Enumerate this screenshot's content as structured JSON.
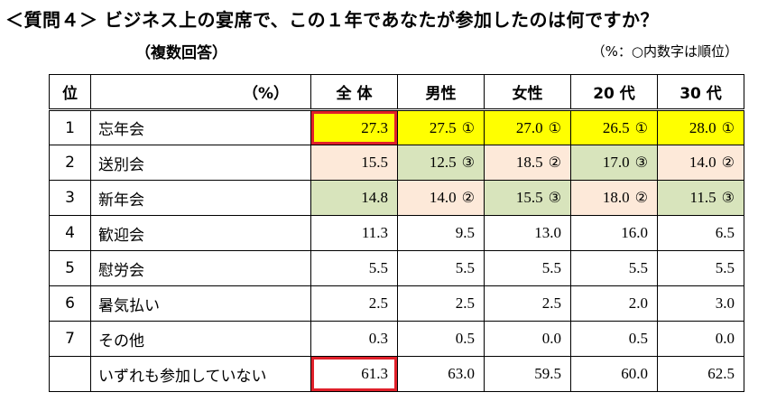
{
  "title": "＜質問４＞ ビジネス上の宴席で、この１年であなたが参加したのは何ですか？",
  "subtitle": "（複数回答）",
  "note": "（%：○内数字は順位）",
  "table": {
    "headers": [
      "位",
      "（%）",
      "全 体",
      "男性",
      "女性",
      "20 代",
      "30 代"
    ],
    "rows": [
      {
        "rank": "1",
        "label": "忘年会",
        "cells": [
          {
            "v": "27.3",
            "r": "",
            "bg": "#ffff00",
            "hl": true
          },
          {
            "v": "27.5",
            "r": "①",
            "bg": "#ffff00"
          },
          {
            "v": "27.0",
            "r": "①",
            "bg": "#ffff00"
          },
          {
            "v": "26.5",
            "r": "①",
            "bg": "#ffff00"
          },
          {
            "v": "28.0",
            "r": "①",
            "bg": "#ffff00"
          }
        ]
      },
      {
        "rank": "2",
        "label": "送別会",
        "cells": [
          {
            "v": "15.5",
            "r": "",
            "bg": "#fde9d9"
          },
          {
            "v": "12.5",
            "r": "③",
            "bg": "#d8e4bc"
          },
          {
            "v": "18.5",
            "r": "②",
            "bg": "#fde9d9"
          },
          {
            "v": "17.0",
            "r": "③",
            "bg": "#d8e4bc"
          },
          {
            "v": "14.0",
            "r": "②",
            "bg": "#fde9d9"
          }
        ]
      },
      {
        "rank": "3",
        "label": "新年会",
        "cells": [
          {
            "v": "14.8",
            "r": "",
            "bg": "#d8e4bc"
          },
          {
            "v": "14.0",
            "r": "②",
            "bg": "#fde9d9"
          },
          {
            "v": "15.5",
            "r": "③",
            "bg": "#d8e4bc"
          },
          {
            "v": "18.0",
            "r": "②",
            "bg": "#fde9d9"
          },
          {
            "v": "11.5",
            "r": "③",
            "bg": "#d8e4bc"
          }
        ]
      },
      {
        "rank": "4",
        "label": "歓迎会",
        "cells": [
          {
            "v": "11.3",
            "r": ""
          },
          {
            "v": "9.5",
            "r": ""
          },
          {
            "v": "13.0",
            "r": ""
          },
          {
            "v": "16.0",
            "r": ""
          },
          {
            "v": "6.5",
            "r": ""
          }
        ]
      },
      {
        "rank": "5",
        "label": "慰労会",
        "cells": [
          {
            "v": "5.5",
            "r": ""
          },
          {
            "v": "5.5",
            "r": ""
          },
          {
            "v": "5.5",
            "r": ""
          },
          {
            "v": "5.5",
            "r": ""
          },
          {
            "v": "5.5",
            "r": ""
          }
        ]
      },
      {
        "rank": "6",
        "label": "暑気払い",
        "cells": [
          {
            "v": "2.5",
            "r": ""
          },
          {
            "v": "2.5",
            "r": ""
          },
          {
            "v": "2.5",
            "r": ""
          },
          {
            "v": "2.0",
            "r": ""
          },
          {
            "v": "3.0",
            "r": ""
          }
        ]
      },
      {
        "rank": "7",
        "label": "その他",
        "cells": [
          {
            "v": "0.3",
            "r": ""
          },
          {
            "v": "0.5",
            "r": ""
          },
          {
            "v": "0.0",
            "r": ""
          },
          {
            "v": "0.5",
            "r": ""
          },
          {
            "v": "0.0",
            "r": ""
          }
        ]
      },
      {
        "rank": "",
        "label": "いずれも参加していない",
        "cells": [
          {
            "v": "61.3",
            "r": "",
            "hl": true
          },
          {
            "v": "63.0",
            "r": ""
          },
          {
            "v": "59.5",
            "r": ""
          },
          {
            "v": "60.0",
            "r": ""
          },
          {
            "v": "62.5",
            "r": ""
          }
        ]
      }
    ]
  }
}
